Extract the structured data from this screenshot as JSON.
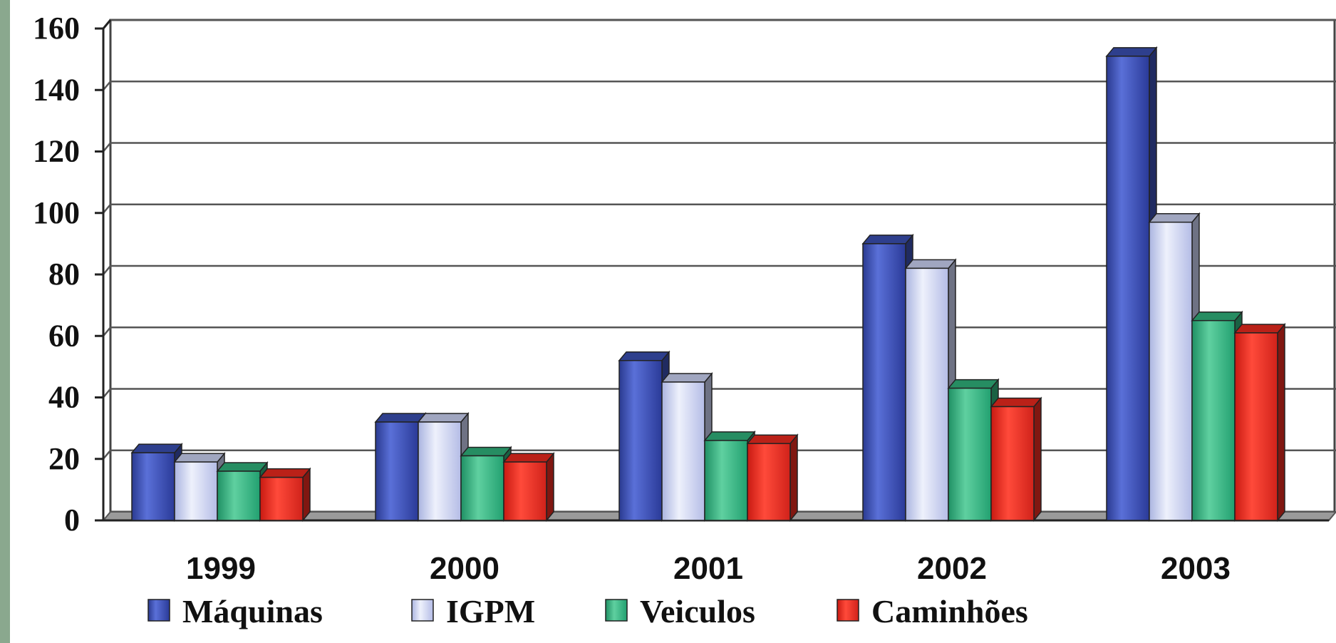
{
  "chart_data": {
    "type": "bar",
    "categories": [
      "1999",
      "2000",
      "2001",
      "2002",
      "2003"
    ],
    "series": [
      {
        "name": "Máquinas",
        "values": [
          22,
          32,
          52,
          90,
          151
        ],
        "color": "#3a4fb0"
      },
      {
        "name": "IGPM",
        "values": [
          19,
          32,
          45,
          82,
          97
        ],
        "color": "#c8d0f0"
      },
      {
        "name": "Veiculos",
        "values": [
          16,
          21,
          26,
          43,
          65
        ],
        "color": "#2fb07a"
      },
      {
        "name": "Caminhões",
        "values": [
          14,
          19,
          25,
          37,
          61
        ],
        "color": "#e8291e"
      }
    ],
    "yticks": [
      "0",
      "20",
      "40",
      "60",
      "80",
      "100",
      "120",
      "140",
      "160"
    ],
    "ylim": [
      0,
      160
    ],
    "grid": true,
    "legend_position": "bottom",
    "title": "",
    "xlabel": "",
    "ylabel": ""
  }
}
